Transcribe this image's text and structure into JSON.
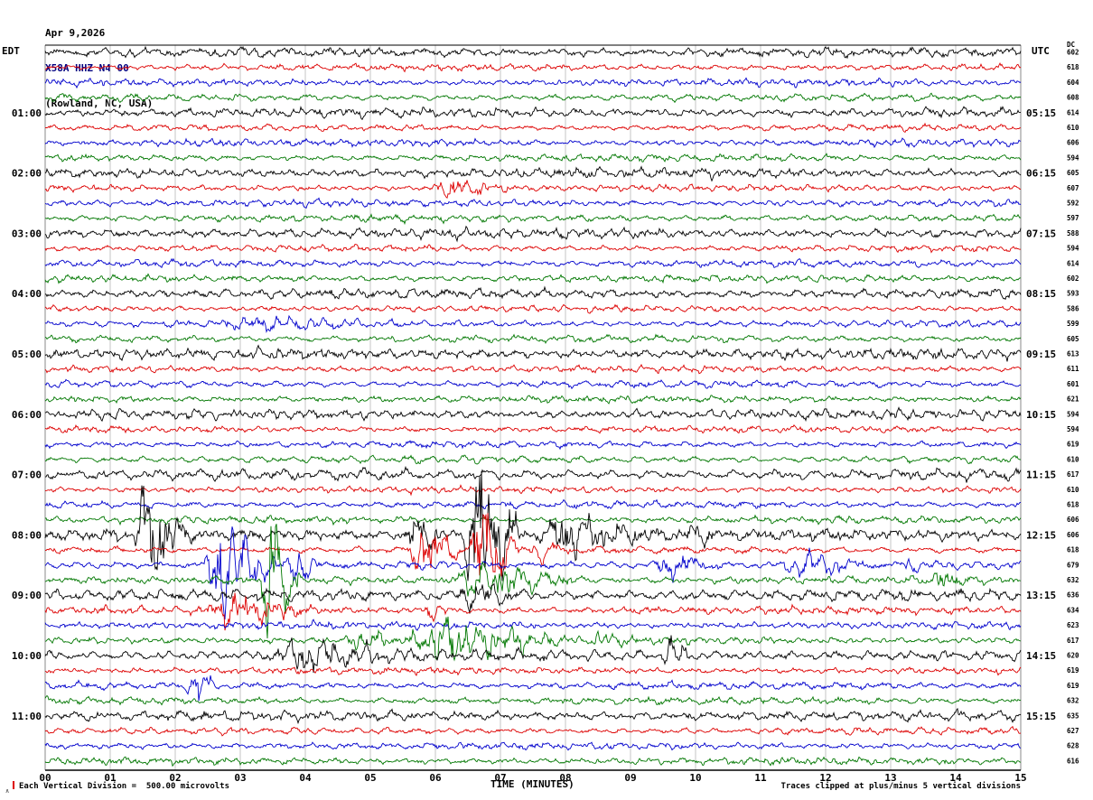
{
  "header": {
    "date": "Apr 9,2026",
    "station": "X58A HHZ N4 00",
    "location": "(Rowland, NC, USA)",
    "station_color": "#000080"
  },
  "axes": {
    "left_tz": "EDT",
    "right_tz": "UTC",
    "dc_label": "DC"
  },
  "left_axis": {
    "hours": [
      "01:00",
      "02:00",
      "03:00",
      "04:00",
      "05:00",
      "06:00",
      "07:00",
      "08:00",
      "09:00",
      "10:00",
      "11:00"
    ]
  },
  "right_axis": {
    "utc": [
      "05:15",
      "06:15",
      "07:15",
      "08:15",
      "09:15",
      "10:15",
      "11:15",
      "12:15",
      "13:15",
      "14:15",
      "15:15"
    ]
  },
  "dc": {
    "values": [
      "602",
      "618",
      "604",
      "608",
      "614",
      "610",
      "606",
      "594",
      "605",
      "607",
      "592",
      "597",
      "588",
      "594",
      "614",
      "602",
      "593",
      "586",
      "599",
      "605",
      "613",
      "611",
      "601",
      "621",
      "594",
      "594",
      "619",
      "610",
      "617",
      "610",
      "618",
      "606",
      "606",
      "618",
      "679",
      "632",
      "636",
      "634",
      "623",
      "617",
      "620",
      "619",
      "619",
      "632",
      "635",
      "627",
      "628",
      "616"
    ]
  },
  "x_axis": {
    "title": "TIME (MINUTES)",
    "ticks": [
      "00",
      "01",
      "02",
      "03",
      "04",
      "05",
      "06",
      "07",
      "08",
      "09",
      "10",
      "11",
      "12",
      "13",
      "14",
      "15"
    ]
  },
  "footer": {
    "left_note": "Each Vertical Division =  500.00 microvolts",
    "right_note": "Traces clipped at plus/minus 5 vertical divisions"
  },
  "chart_data": {
    "type": "line",
    "subtype": "seismogram-helicorder",
    "xlabel": "TIME (MINUTES)",
    "x_range": [
      0,
      15
    ],
    "minutes_per_row": 15,
    "rows_per_hour": 4,
    "microvolts_per_division": 500.0,
    "clip_divisions": 5,
    "grid": true,
    "accent_red": "#dd0000",
    "trace_colors": [
      "#000000",
      "#dd0000",
      "#0000cc",
      "#007700"
    ],
    "rows": [
      {
        "c": 0,
        "a": 3.2
      },
      {
        "c": 1,
        "a": 2.2
      },
      {
        "c": 2,
        "a": 2.4
      },
      {
        "c": 3,
        "a": 2.4
      },
      {
        "c": 0,
        "a": 3.2
      },
      {
        "c": 1,
        "a": 2.2
      },
      {
        "c": 2,
        "a": 2.4
      },
      {
        "c": 3,
        "a": 2.4
      },
      {
        "c": 0,
        "a": 3.4
      },
      {
        "c": 1,
        "a": 2.2,
        "ev": [
          [
            5.9,
            7.4,
            7
          ]
        ]
      },
      {
        "c": 2,
        "a": 2.4
      },
      {
        "c": 3,
        "a": 2.4
      },
      {
        "c": 0,
        "a": 3.4
      },
      {
        "c": 1,
        "a": 2.2
      },
      {
        "c": 2,
        "a": 2.4
      },
      {
        "c": 3,
        "a": 2.4
      },
      {
        "c": 0,
        "a": 3.2
      },
      {
        "c": 1,
        "a": 2.2
      },
      {
        "c": 2,
        "a": 2.4,
        "ev": [
          [
            2.6,
            5.6,
            4
          ]
        ]
      },
      {
        "c": 3,
        "a": 2.4
      },
      {
        "c": 0,
        "a": 3.6
      },
      {
        "c": 1,
        "a": 2.4
      },
      {
        "c": 2,
        "a": 2.4
      },
      {
        "c": 3,
        "a": 2.4
      },
      {
        "c": 0,
        "a": 3.4
      },
      {
        "c": 1,
        "a": 2.2
      },
      {
        "c": 2,
        "a": 2.4
      },
      {
        "c": 3,
        "a": 2.4
      },
      {
        "c": 0,
        "a": 3.6
      },
      {
        "c": 1,
        "a": 2.2
      },
      {
        "c": 2,
        "a": 2.4
      },
      {
        "c": 3,
        "a": 2.4
      },
      {
        "c": 0,
        "a": 3.8,
        "ev": [
          [
            1.35,
            2.3,
            50
          ],
          [
            5.5,
            6.4,
            15
          ],
          [
            6.4,
            7.5,
            70
          ],
          [
            7.5,
            9.7,
            16
          ],
          [
            9.7,
            10.6,
            6
          ]
        ]
      },
      {
        "c": 1,
        "a": 2.6,
        "ev": [
          [
            5.6,
            6.5,
            26
          ],
          [
            6.5,
            7.4,
            40
          ],
          [
            7.4,
            8.1,
            8
          ]
        ]
      },
      {
        "c": 2,
        "a": 2.6,
        "ev": [
          [
            2.4,
            3.7,
            42
          ],
          [
            3.7,
            4.3,
            15
          ],
          [
            9.3,
            10.7,
            10
          ],
          [
            11.3,
            12.9,
            10
          ],
          [
            13.1,
            13.7,
            7
          ]
        ]
      },
      {
        "c": 3,
        "a": 2.6,
        "ev": [
          [
            3.3,
            4.0,
            55
          ],
          [
            6.2,
            8.6,
            14
          ],
          [
            13.6,
            14.3,
            8
          ]
        ]
      },
      {
        "c": 0,
        "a": 3.8,
        "ev": [
          [
            6.3,
            7.6,
            10
          ]
        ]
      },
      {
        "c": 1,
        "a": 2.6,
        "ev": [
          [
            2.4,
            4.4,
            12
          ],
          [
            5.8,
            6.4,
            7
          ]
        ]
      },
      {
        "c": 2,
        "a": 2.5
      },
      {
        "c": 3,
        "a": 2.6,
        "ev": [
          [
            4.6,
            5.5,
            9
          ],
          [
            5.5,
            8.4,
            18
          ],
          [
            8.4,
            9.1,
            6
          ]
        ]
      },
      {
        "c": 0,
        "a": 3.8,
        "ev": [
          [
            3.4,
            6.1,
            11
          ],
          [
            9.5,
            10.0,
            14
          ]
        ]
      },
      {
        "c": 1,
        "a": 2.3
      },
      {
        "c": 2,
        "a": 2.4,
        "ev": [
          [
            2.15,
            2.7,
            18
          ]
        ]
      },
      {
        "c": 3,
        "a": 2.4
      },
      {
        "c": 0,
        "a": 3.4
      },
      {
        "c": 1,
        "a": 2.2
      },
      {
        "c": 2,
        "a": 2.4
      },
      {
        "c": 3,
        "a": 2.4
      }
    ]
  }
}
